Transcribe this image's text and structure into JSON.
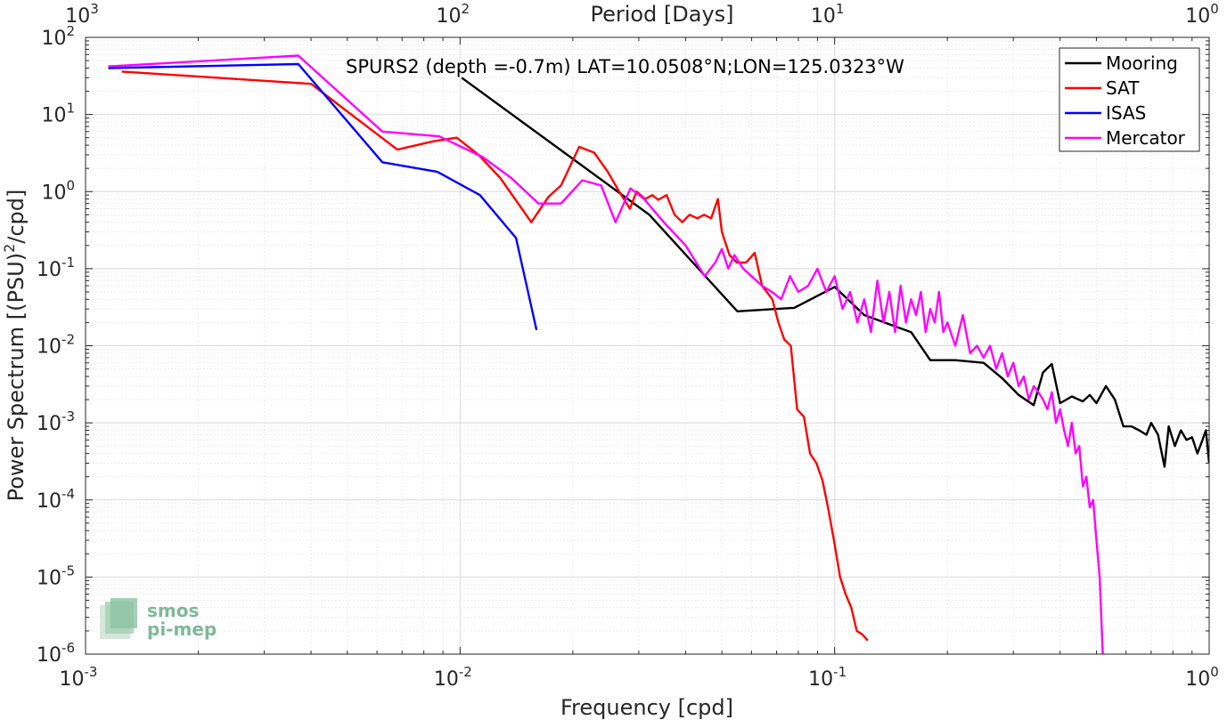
{
  "chart_data": {
    "type": "line",
    "title": "",
    "xlabel": "Frequency [cpd]",
    "ylabel": "Power Spectrum [(PSU)",
    "ylabel_sup": "2",
    "ylabel_tail": "/cpd]",
    "x_scale": "log",
    "y_scale": "log",
    "xlim": [
      0.001,
      1
    ],
    "ylim": [
      1e-06,
      100
    ],
    "grid": true,
    "x_ticks": [
      {
        "base": "10",
        "exp": "-3",
        "v": 0.001
      },
      {
        "base": "10",
        "exp": "-2",
        "v": 0.01
      },
      {
        "base": "10",
        "exp": "-1",
        "v": 0.1
      },
      {
        "base": "10",
        "exp": "0",
        "v": 1
      }
    ],
    "y_ticks": [
      {
        "base": "10",
        "exp": "-6",
        "v": 1e-06
      },
      {
        "base": "10",
        "exp": "-5",
        "v": 1e-05
      },
      {
        "base": "10",
        "exp": "-4",
        "v": 0.0001
      },
      {
        "base": "10",
        "exp": "-3",
        "v": 0.001
      },
      {
        "base": "10",
        "exp": "-2",
        "v": 0.01
      },
      {
        "base": "10",
        "exp": "-1",
        "v": 0.1
      },
      {
        "base": "10",
        "exp": "0",
        "v": 1
      },
      {
        "base": "10",
        "exp": "1",
        "v": 10
      },
      {
        "base": "10",
        "exp": "2",
        "v": 100
      }
    ],
    "top_axis": {
      "label": "Period [Days]",
      "ticks": [
        {
          "base": "10",
          "exp": "3",
          "v": 0.001
        },
        {
          "base": "10",
          "exp": "2",
          "v": 0.01
        },
        {
          "base": "10",
          "exp": "1",
          "v": 0.1
        },
        {
          "base": "10",
          "exp": "0",
          "v": 1
        }
      ]
    },
    "annotation": "SPURS2 (depth =-0.7m) LAT=10.0508°N;LON=125.0323°W",
    "legend_position": "top-right",
    "series": [
      {
        "name": "Mooring",
        "color": "#000000",
        "points": [
          [
            0.0101,
            30
          ],
          [
            0.032,
            0.5
          ],
          [
            0.055,
            0.028
          ],
          [
            0.078,
            0.031
          ],
          [
            0.1,
            0.058
          ],
          [
            0.12,
            0.025
          ],
          [
            0.14,
            0.019
          ],
          [
            0.16,
            0.015
          ],
          [
            0.18,
            0.0065
          ],
          [
            0.21,
            0.0065
          ],
          [
            0.25,
            0.006
          ],
          [
            0.28,
            0.0038
          ],
          [
            0.31,
            0.0023
          ],
          [
            0.34,
            0.0017
          ],
          [
            0.36,
            0.0045
          ],
          [
            0.38,
            0.0058
          ],
          [
            0.4,
            0.0018
          ],
          [
            0.43,
            0.0022
          ],
          [
            0.46,
            0.0019
          ],
          [
            0.48,
            0.0023
          ],
          [
            0.5,
            0.0018
          ],
          [
            0.53,
            0.003
          ],
          [
            0.56,
            0.002
          ],
          [
            0.59,
            0.0009
          ],
          [
            0.62,
            0.0009
          ],
          [
            0.65,
            0.0008
          ],
          [
            0.68,
            0.0007
          ],
          [
            0.7,
            0.001
          ],
          [
            0.73,
            0.0007
          ],
          [
            0.76,
            0.00027
          ],
          [
            0.78,
            0.0009
          ],
          [
            0.81,
            0.0005
          ],
          [
            0.84,
            0.0008
          ],
          [
            0.87,
            0.0006
          ],
          [
            0.9,
            0.00065
          ],
          [
            0.93,
            0.0004
          ],
          [
            0.96,
            0.0006
          ],
          [
            0.98,
            0.0008
          ],
          [
            1.0,
            0.0003
          ]
        ]
      },
      {
        "name": "SAT",
        "color": "#ff0000",
        "points": [
          [
            0.00125,
            36
          ],
          [
            0.004,
            25
          ],
          [
            0.0068,
            3.5
          ],
          [
            0.0085,
            4.5
          ],
          [
            0.0098,
            5
          ],
          [
            0.0112,
            3
          ],
          [
            0.0128,
            1.5
          ],
          [
            0.0155,
            0.4
          ],
          [
            0.0172,
            0.85
          ],
          [
            0.0186,
            1.2
          ],
          [
            0.0208,
            3.8
          ],
          [
            0.0228,
            3.2
          ],
          [
            0.0248,
            1.8
          ],
          [
            0.0266,
            1.0
          ],
          [
            0.0284,
            0.6
          ],
          [
            0.0296,
            1.0
          ],
          [
            0.0312,
            0.8
          ],
          [
            0.0326,
            0.9
          ],
          [
            0.0338,
            0.78
          ],
          [
            0.0356,
            0.9
          ],
          [
            0.0374,
            0.5
          ],
          [
            0.0392,
            0.4
          ],
          [
            0.041,
            0.5
          ],
          [
            0.043,
            0.45
          ],
          [
            0.0448,
            0.5
          ],
          [
            0.0468,
            0.45
          ],
          [
            0.0488,
            0.8
          ],
          [
            0.05,
            0.3
          ],
          [
            0.0524,
            0.15
          ],
          [
            0.0548,
            0.12
          ],
          [
            0.058,
            0.12
          ],
          [
            0.0612,
            0.16
          ],
          [
            0.064,
            0.06
          ],
          [
            0.0682,
            0.04
          ],
          [
            0.0708,
            0.02
          ],
          [
            0.0734,
            0.012
          ],
          [
            0.0764,
            0.01
          ],
          [
            0.0794,
            0.0015
          ],
          [
            0.0828,
            0.0012
          ],
          [
            0.086,
            0.0004
          ],
          [
            0.0894,
            0.0003
          ],
          [
            0.0928,
            0.00018
          ],
          [
            0.096,
            8e-05
          ],
          [
            0.0996,
            3e-05
          ],
          [
            0.1034,
            1e-05
          ],
          [
            0.107,
            6e-06
          ],
          [
            0.1108,
            4e-06
          ],
          [
            0.1146,
            2e-06
          ],
          [
            0.1186,
            1.8e-06
          ],
          [
            0.1226,
            1.5e-06
          ]
        ]
      },
      {
        "name": "ISAS",
        "color": "#0000ff",
        "points": [
          [
            0.00115,
            40
          ],
          [
            0.0037,
            45
          ],
          [
            0.0062,
            2.4
          ],
          [
            0.0087,
            1.8
          ],
          [
            0.0113,
            0.9
          ],
          [
            0.0141,
            0.25
          ],
          [
            0.016,
            0.016
          ]
        ]
      },
      {
        "name": "Mercator",
        "color": "#ff00ff",
        "points": [
          [
            0.00115,
            42
          ],
          [
            0.0037,
            58
          ],
          [
            0.0062,
            6
          ],
          [
            0.0088,
            5.2
          ],
          [
            0.0115,
            2.8
          ],
          [
            0.0137,
            1.5
          ],
          [
            0.0162,
            0.7
          ],
          [
            0.0186,
            0.7
          ],
          [
            0.0212,
            1.4
          ],
          [
            0.0238,
            1.2
          ],
          [
            0.026,
            0.4
          ],
          [
            0.0285,
            1.1
          ],
          [
            0.031,
            0.8
          ],
          [
            0.035,
            0.4
          ],
          [
            0.04,
            0.2
          ],
          [
            0.045,
            0.08
          ],
          [
            0.048,
            0.12
          ],
          [
            0.05,
            0.18
          ],
          [
            0.052,
            0.1
          ],
          [
            0.054,
            0.15
          ],
          [
            0.057,
            0.1
          ],
          [
            0.06,
            0.08
          ],
          [
            0.064,
            0.06
          ],
          [
            0.068,
            0.05
          ],
          [
            0.072,
            0.04
          ],
          [
            0.076,
            0.08
          ],
          [
            0.08,
            0.05
          ],
          [
            0.085,
            0.06
          ],
          [
            0.09,
            0.1
          ],
          [
            0.095,
            0.05
          ],
          [
            0.1,
            0.08
          ],
          [
            0.105,
            0.03
          ],
          [
            0.11,
            0.05
          ],
          [
            0.115,
            0.02
          ],
          [
            0.12,
            0.04
          ],
          [
            0.125,
            0.015
          ],
          [
            0.13,
            0.07
          ],
          [
            0.135,
            0.02
          ],
          [
            0.14,
            0.05
          ],
          [
            0.145,
            0.015
          ],
          [
            0.15,
            0.06
          ],
          [
            0.155,
            0.02
          ],
          [
            0.16,
            0.04
          ],
          [
            0.165,
            0.025
          ],
          [
            0.17,
            0.05
          ],
          [
            0.175,
            0.015
          ],
          [
            0.18,
            0.03
          ],
          [
            0.185,
            0.02
          ],
          [
            0.19,
            0.05
          ],
          [
            0.195,
            0.015
          ],
          [
            0.2,
            0.02
          ],
          [
            0.21,
            0.01
          ],
          [
            0.22,
            0.025
          ],
          [
            0.23,
            0.008
          ],
          [
            0.24,
            0.01
          ],
          [
            0.25,
            0.007
          ],
          [
            0.26,
            0.01
          ],
          [
            0.27,
            0.005
          ],
          [
            0.28,
            0.008
          ],
          [
            0.29,
            0.004
          ],
          [
            0.3,
            0.006
          ],
          [
            0.31,
            0.003
          ],
          [
            0.32,
            0.004
          ],
          [
            0.33,
            0.002
          ],
          [
            0.34,
            0.003
          ],
          [
            0.35,
            0.0025
          ],
          [
            0.36,
            0.002
          ],
          [
            0.37,
            0.0015
          ],
          [
            0.38,
            0.0025
          ],
          [
            0.39,
            0.001
          ],
          [
            0.4,
            0.0015
          ],
          [
            0.41,
            0.0008
          ],
          [
            0.42,
            0.0005
          ],
          [
            0.43,
            0.001
          ],
          [
            0.44,
            0.0004
          ],
          [
            0.45,
            0.0005
          ],
          [
            0.46,
            0.00015
          ],
          [
            0.47,
            0.0002
          ],
          [
            0.48,
            8e-05
          ],
          [
            0.49,
            0.0001
          ],
          [
            0.5,
            3e-05
          ],
          [
            0.51,
            1e-05
          ],
          [
            0.52,
            1e-06
          ]
        ]
      }
    ]
  },
  "logo": {
    "line1": "smos",
    "line2": "pi-mep",
    "color": "#7fb89a"
  }
}
